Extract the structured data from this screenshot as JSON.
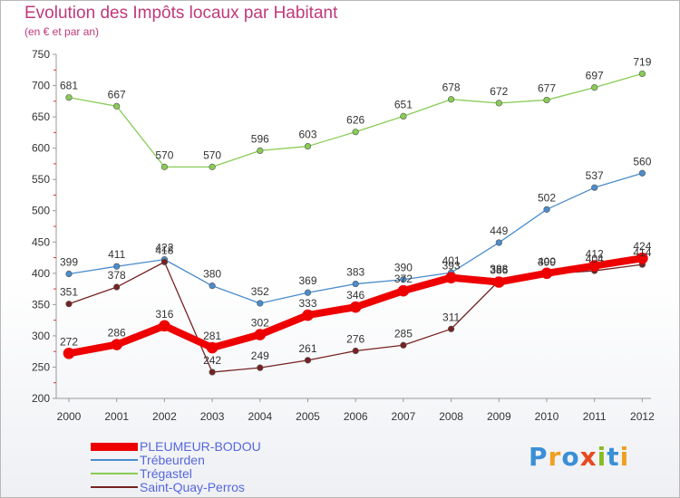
{
  "chart_data": {
    "type": "line",
    "title": "Evolution des Impôts locaux par Habitant",
    "subtitle": "(en € et par an)",
    "xlabel": "",
    "ylabel": "",
    "ylim": [
      200,
      750
    ],
    "yticks": [
      "200",
      "250",
      "300",
      "350",
      "400",
      "450",
      "500",
      "550",
      "600",
      "650",
      "700",
      "750"
    ],
    "x": [
      "2000",
      "2001",
      "2002",
      "2003",
      "2004",
      "2005",
      "2006",
      "2007",
      "2008",
      "2009",
      "2010",
      "2011",
      "2012"
    ],
    "series": [
      {
        "name": "PLEUMEUR-BODOU",
        "color": "#ee0000",
        "values": [
          272,
          286,
          316,
          281,
          302,
          333,
          346,
          372,
          393,
          386,
          400,
          412,
          424
        ]
      },
      {
        "name": "Trébeurden",
        "color": "#4a8ccc",
        "values": [
          399,
          411,
          422,
          380,
          352,
          369,
          383,
          390,
          401,
          449,
          502,
          537,
          560
        ]
      },
      {
        "name": "Trégastel",
        "color": "#88cc55",
        "values": [
          681,
          667,
          570,
          570,
          596,
          603,
          626,
          651,
          678,
          672,
          677,
          697,
          719
        ]
      },
      {
        "name": "Saint-Quay-Perros",
        "color": "#772222",
        "values": [
          351,
          378,
          418,
          242,
          249,
          261,
          276,
          285,
          311,
          388,
          399,
          404,
          414
        ]
      }
    ],
    "legend": "bottom-left",
    "grid": false
  },
  "logo": {
    "letters": [
      "P",
      "r",
      "o",
      "x",
      "i",
      "t",
      "i"
    ],
    "colors": [
      "#3b8fd6",
      "#f0a020",
      "#3b8fd6",
      "#e84820",
      "#88bb22",
      "#3b8fd6",
      "#f0a020"
    ]
  }
}
